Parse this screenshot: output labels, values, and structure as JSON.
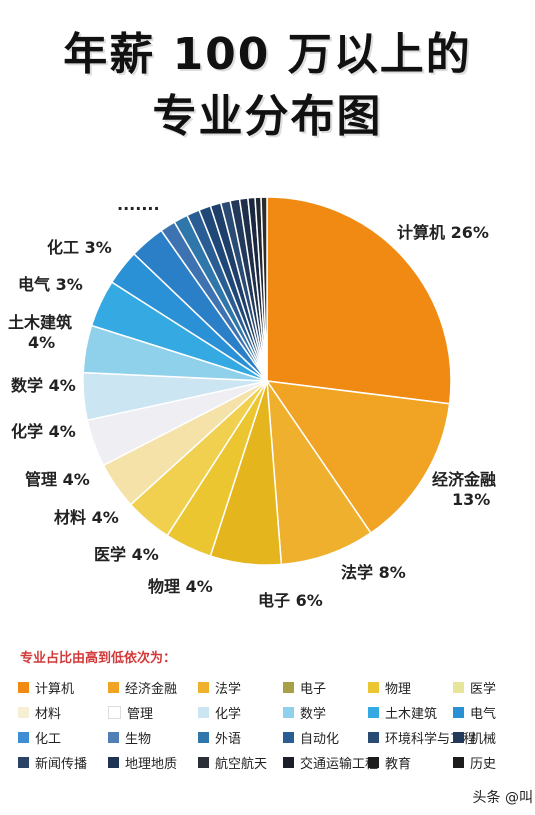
{
  "title": {
    "line1": "年薪 100 万以上的",
    "line2": "专业分布图"
  },
  "ellipsis_label": "·······",
  "watermark": "头条 @叫",
  "chart_data": {
    "type": "pie",
    "title": "年薪 100 万以上的专业分布图",
    "start_direction": "top-clockwise",
    "labels_shown": [
      {
        "name": "计算机",
        "text": "计算机 26%"
      },
      {
        "name": "经济金融",
        "text": "经济金融\n13%"
      },
      {
        "name": "法学",
        "text": "法学 8%"
      },
      {
        "name": "电子",
        "text": "电子 6%"
      },
      {
        "name": "物理",
        "text": "物理 4%"
      },
      {
        "name": "医学",
        "text": "医学 4%"
      },
      {
        "name": "材料",
        "text": "材料 4%"
      },
      {
        "name": "管理",
        "text": "管理 4%"
      },
      {
        "name": "化学",
        "text": "化学 4%"
      },
      {
        "name": "数学",
        "text": "数学 4%"
      },
      {
        "name": "土木建筑",
        "text": "土木建筑\n4%"
      },
      {
        "name": "电气",
        "text": "电气 3%"
      },
      {
        "name": "化工",
        "text": "化工 3%"
      }
    ],
    "slices": [
      {
        "name": "计算机",
        "value": 26,
        "color": "#f08a12"
      },
      {
        "name": "经济金融",
        "value": 13,
        "color": "#f1a323"
      },
      {
        "name": "法学",
        "value": 8,
        "color": "#efb02d"
      },
      {
        "name": "电子",
        "value": 6,
        "color": "#e4b51c"
      },
      {
        "name": "物理",
        "value": 4,
        "color": "#ebc631"
      },
      {
        "name": "医学",
        "value": 4,
        "color": "#f0d04e"
      },
      {
        "name": "材料",
        "value": 4,
        "color": "#f5e2a9"
      },
      {
        "name": "管理",
        "value": 4,
        "color": "#eeeef3"
      },
      {
        "name": "化学",
        "value": 4,
        "color": "#cbe5f2"
      },
      {
        "name": "数学",
        "value": 4,
        "color": "#8fd0ea"
      },
      {
        "name": "土木建筑",
        "value": 4,
        "color": "#34a9e2"
      },
      {
        "name": "电气",
        "value": 3,
        "color": "#2a91d6"
      },
      {
        "name": "化工",
        "value": 3,
        "color": "#2a7fc6"
      },
      {
        "name": "生物",
        "value": 1.3,
        "color": "#3e73b1"
      },
      {
        "name": "外语",
        "value": 1.2,
        "color": "#2f77aa"
      },
      {
        "name": "自动化",
        "value": 1.1,
        "color": "#2b5d95"
      },
      {
        "name": "环境科学与工程",
        "value": 1,
        "color": "#1f4878"
      },
      {
        "name": "机械",
        "value": 0.9,
        "color": "#1d3f6a"
      },
      {
        "name": "新闻传播",
        "value": 0.8,
        "color": "#2a4c74"
      },
      {
        "name": "地理地质",
        "value": 0.8,
        "color": "#23395c"
      },
      {
        "name": "航空航天",
        "value": 0.7,
        "color": "#1e2f4a"
      },
      {
        "name": "交通运输工程",
        "value": 0.6,
        "color": "#1a2740"
      },
      {
        "name": "教育",
        "value": 0.5,
        "color": "#222831"
      },
      {
        "name": "历史",
        "value": 0.5,
        "color": "#2c2c2c"
      }
    ]
  },
  "legend": {
    "title": "专业占比由高到低依次为：",
    "items": [
      {
        "label": "计算机",
        "color": "#f08a12"
      },
      {
        "label": "经济金融",
        "color": "#f1a323"
      },
      {
        "label": "法学",
        "color": "#efb02d"
      },
      {
        "label": "电子",
        "color": "#a8a046"
      },
      {
        "label": "物理",
        "color": "#ebc631"
      },
      {
        "label": "医学",
        "color": "#e6e59a"
      },
      {
        "label": "材料",
        "color": "#f7efd4"
      },
      {
        "label": "管理",
        "color": "#ffffff"
      },
      {
        "label": "化学",
        "color": "#cbe5f2"
      },
      {
        "label": "数学",
        "color": "#8fd0ea"
      },
      {
        "label": "土木建筑",
        "color": "#34a9e2"
      },
      {
        "label": "电气",
        "color": "#2a91d6"
      },
      {
        "label": "化工",
        "color": "#3f8ed3"
      },
      {
        "label": "生物",
        "color": "#4f7fb5"
      },
      {
        "label": "外语",
        "color": "#2f77aa"
      },
      {
        "label": "自动化",
        "color": "#2b5d95"
      },
      {
        "label": "环境科学与工程",
        "color": "#2a4c74"
      },
      {
        "label": "机械",
        "color": "#23395c"
      },
      {
        "label": "新闻传播",
        "color": "#2b4364"
      },
      {
        "label": "地理地质",
        "color": "#1f3352"
      },
      {
        "label": "航空航天",
        "color": "#2a2f38"
      },
      {
        "label": "交通运输工程",
        "color": "#1a1f28"
      },
      {
        "label": "教育",
        "color": "#1c1c1c"
      },
      {
        "label": "历史",
        "color": "#1c1c1c"
      }
    ]
  }
}
